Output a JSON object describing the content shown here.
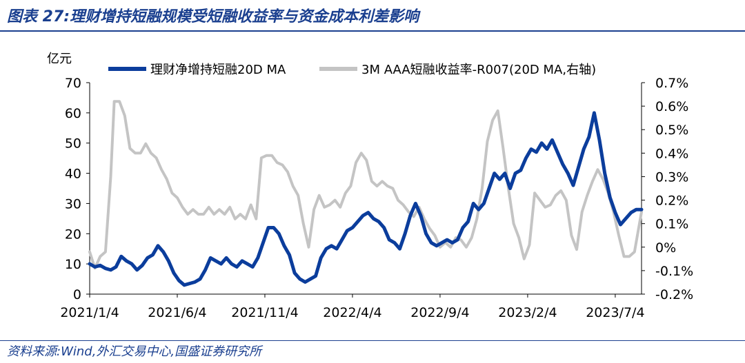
{
  "title": "图表 27:理财增持短融规模受短融收益率与资金成本利差影响",
  "source": "资料来源:Wind,外汇交易中心,国盛证券研究所",
  "colors": {
    "primary": "#0b3d9c",
    "secondary": "#c4c4c4",
    "text_blue": "#1a3f8f",
    "axis": "#000000"
  },
  "chart_data": {
    "type": "line",
    "title": "",
    "y_unit_label": "亿元",
    "ylim_left": [
      0,
      70
    ],
    "ylim_right": [
      -0.2,
      0.7
    ],
    "left_ticks": [
      "0",
      "10",
      "20",
      "30",
      "40",
      "50",
      "60",
      "70"
    ],
    "right_ticks": [
      "-0.2%",
      "-0.1%",
      "0%",
      "0.1%",
      "0.2%",
      "0.3%",
      "0.4%",
      "0.5%",
      "0.6%",
      "0.7%"
    ],
    "x_tick_labels": [
      "2021/1/4",
      "2021/6/4",
      "2021/11/4",
      "2022/4/4",
      "2022/9/4",
      "2023/2/4",
      "2023/7/4"
    ],
    "x_range_months": [
      0,
      31.5
    ],
    "x_tick_positions_months": [
      0,
      5,
      10,
      15,
      20,
      25,
      30
    ],
    "series": [
      {
        "name": "理财净增持短融20D MA",
        "axis": "left",
        "points": [
          [
            0.0,
            10
          ],
          [
            0.3,
            9
          ],
          [
            0.6,
            9.5
          ],
          [
            0.9,
            8.5
          ],
          [
            1.2,
            8
          ],
          [
            1.5,
            9
          ],
          [
            1.8,
            12.5
          ],
          [
            2.1,
            11
          ],
          [
            2.4,
            10
          ],
          [
            2.7,
            8
          ],
          [
            3.0,
            9.5
          ],
          [
            3.3,
            12
          ],
          [
            3.6,
            13
          ],
          [
            3.9,
            16
          ],
          [
            4.2,
            14
          ],
          [
            4.5,
            11
          ],
          [
            4.8,
            7
          ],
          [
            5.1,
            4.5
          ],
          [
            5.4,
            3
          ],
          [
            5.7,
            3.5
          ],
          [
            6.0,
            4
          ],
          [
            6.3,
            5
          ],
          [
            6.6,
            8
          ],
          [
            6.9,
            12
          ],
          [
            7.2,
            11
          ],
          [
            7.5,
            10
          ],
          [
            7.8,
            12
          ],
          [
            8.1,
            10
          ],
          [
            8.4,
            9
          ],
          [
            8.7,
            11
          ],
          [
            9.0,
            10
          ],
          [
            9.3,
            9
          ],
          [
            9.6,
            12
          ],
          [
            9.9,
            17
          ],
          [
            10.2,
            22
          ],
          [
            10.5,
            22
          ],
          [
            10.8,
            20
          ],
          [
            11.1,
            16
          ],
          [
            11.4,
            13
          ],
          [
            11.7,
            7
          ],
          [
            12.0,
            5
          ],
          [
            12.3,
            4
          ],
          [
            12.6,
            5
          ],
          [
            12.9,
            6
          ],
          [
            13.2,
            12
          ],
          [
            13.5,
            15
          ],
          [
            13.8,
            16
          ],
          [
            14.1,
            15
          ],
          [
            14.4,
            18
          ],
          [
            14.7,
            21
          ],
          [
            15.0,
            22
          ],
          [
            15.3,
            24
          ],
          [
            15.6,
            26
          ],
          [
            15.9,
            27
          ],
          [
            16.2,
            25
          ],
          [
            16.5,
            24
          ],
          [
            16.8,
            22
          ],
          [
            17.1,
            18
          ],
          [
            17.4,
            17
          ],
          [
            17.7,
            15
          ],
          [
            18.0,
            20
          ],
          [
            18.3,
            26
          ],
          [
            18.6,
            30
          ],
          [
            18.9,
            26
          ],
          [
            19.2,
            20
          ],
          [
            19.5,
            17
          ],
          [
            19.8,
            16
          ],
          [
            20.1,
            17
          ],
          [
            20.4,
            18
          ],
          [
            20.7,
            17
          ],
          [
            21.0,
            18
          ],
          [
            21.3,
            22
          ],
          [
            21.6,
            24
          ],
          [
            21.9,
            30
          ],
          [
            22.2,
            28
          ],
          [
            22.5,
            30
          ],
          [
            22.8,
            35
          ],
          [
            23.1,
            40
          ],
          [
            23.4,
            38
          ],
          [
            23.7,
            40
          ],
          [
            24.0,
            35
          ],
          [
            24.3,
            40
          ],
          [
            24.6,
            41
          ],
          [
            24.9,
            45
          ],
          [
            25.2,
            48
          ],
          [
            25.5,
            47
          ],
          [
            25.8,
            50
          ],
          [
            26.1,
            48
          ],
          [
            26.4,
            51
          ],
          [
            26.7,
            47
          ],
          [
            27.0,
            43
          ],
          [
            27.3,
            40
          ],
          [
            27.6,
            36
          ],
          [
            27.9,
            42
          ],
          [
            28.2,
            48
          ],
          [
            28.5,
            52
          ],
          [
            28.8,
            60
          ],
          [
            29.1,
            51
          ],
          [
            29.4,
            40
          ],
          [
            29.7,
            32
          ],
          [
            30.0,
            27
          ],
          [
            30.3,
            23
          ],
          [
            30.6,
            25
          ],
          [
            30.9,
            27
          ],
          [
            31.2,
            28
          ],
          [
            31.5,
            28
          ]
        ]
      },
      {
        "name": "3M AAA短融收益率-R007(20D MA,右轴)",
        "axis": "right",
        "points": [
          [
            0.0,
            -0.02
          ],
          [
            0.3,
            -0.09
          ],
          [
            0.6,
            -0.04
          ],
          [
            0.9,
            -0.02
          ],
          [
            1.2,
            0.3
          ],
          [
            1.4,
            0.62
          ],
          [
            1.7,
            0.62
          ],
          [
            2.0,
            0.56
          ],
          [
            2.3,
            0.42
          ],
          [
            2.6,
            0.4
          ],
          [
            2.9,
            0.4
          ],
          [
            3.2,
            0.44
          ],
          [
            3.5,
            0.4
          ],
          [
            3.8,
            0.38
          ],
          [
            4.1,
            0.33
          ],
          [
            4.4,
            0.29
          ],
          [
            4.7,
            0.23
          ],
          [
            5.0,
            0.21
          ],
          [
            5.3,
            0.17
          ],
          [
            5.6,
            0.14
          ],
          [
            5.9,
            0.16
          ],
          [
            6.2,
            0.14
          ],
          [
            6.5,
            0.14
          ],
          [
            6.8,
            0.17
          ],
          [
            7.1,
            0.14
          ],
          [
            7.4,
            0.16
          ],
          [
            7.7,
            0.14
          ],
          [
            8.0,
            0.17
          ],
          [
            8.3,
            0.12
          ],
          [
            8.6,
            0.14
          ],
          [
            8.9,
            0.12
          ],
          [
            9.2,
            0.18
          ],
          [
            9.5,
            0.12
          ],
          [
            9.8,
            0.38
          ],
          [
            10.1,
            0.39
          ],
          [
            10.4,
            0.39
          ],
          [
            10.7,
            0.36
          ],
          [
            11.0,
            0.35
          ],
          [
            11.3,
            0.32
          ],
          [
            11.6,
            0.26
          ],
          [
            11.9,
            0.22
          ],
          [
            12.2,
            0.1
          ],
          [
            12.5,
            0.0
          ],
          [
            12.8,
            0.16
          ],
          [
            13.1,
            0.22
          ],
          [
            13.4,
            0.17
          ],
          [
            13.7,
            0.18
          ],
          [
            14.0,
            0.2
          ],
          [
            14.3,
            0.17
          ],
          [
            14.6,
            0.23
          ],
          [
            14.9,
            0.26
          ],
          [
            15.2,
            0.36
          ],
          [
            15.5,
            0.4
          ],
          [
            15.8,
            0.37
          ],
          [
            16.1,
            0.28
          ],
          [
            16.4,
            0.26
          ],
          [
            16.7,
            0.28
          ],
          [
            17.0,
            0.26
          ],
          [
            17.3,
            0.25
          ],
          [
            17.6,
            0.2
          ],
          [
            17.9,
            0.18
          ],
          [
            18.2,
            0.15
          ],
          [
            18.5,
            0.13
          ],
          [
            18.8,
            0.17
          ],
          [
            19.1,
            0.12
          ],
          [
            19.4,
            0.08
          ],
          [
            19.7,
            0.05
          ],
          [
            20.0,
            0.0
          ],
          [
            20.3,
            0.02
          ],
          [
            20.6,
            0.0
          ],
          [
            20.9,
            0.04
          ],
          [
            21.2,
            0.03
          ],
          [
            21.5,
            0.0
          ],
          [
            21.8,
            0.04
          ],
          [
            22.1,
            0.12
          ],
          [
            22.4,
            0.25
          ],
          [
            22.7,
            0.45
          ],
          [
            23.0,
            0.54
          ],
          [
            23.3,
            0.58
          ],
          [
            23.6,
            0.42
          ],
          [
            23.9,
            0.25
          ],
          [
            24.2,
            0.1
          ],
          [
            24.5,
            0.04
          ],
          [
            24.8,
            -0.05
          ],
          [
            25.1,
            0.01
          ],
          [
            25.4,
            0.23
          ],
          [
            25.7,
            0.2
          ],
          [
            26.0,
            0.17
          ],
          [
            26.3,
            0.18
          ],
          [
            26.6,
            0.22
          ],
          [
            26.9,
            0.24
          ],
          [
            27.2,
            0.2
          ],
          [
            27.5,
            0.05
          ],
          [
            27.8,
            -0.01
          ],
          [
            28.1,
            0.15
          ],
          [
            28.4,
            0.22
          ],
          [
            28.7,
            0.28
          ],
          [
            29.0,
            0.33
          ],
          [
            29.3,
            0.29
          ],
          [
            29.6,
            0.23
          ],
          [
            29.9,
            0.15
          ],
          [
            30.2,
            0.05
          ],
          [
            30.5,
            -0.04
          ],
          [
            30.8,
            -0.04
          ],
          [
            31.1,
            -0.02
          ],
          [
            31.5,
            0.15
          ]
        ]
      }
    ],
    "legend": "top"
  }
}
